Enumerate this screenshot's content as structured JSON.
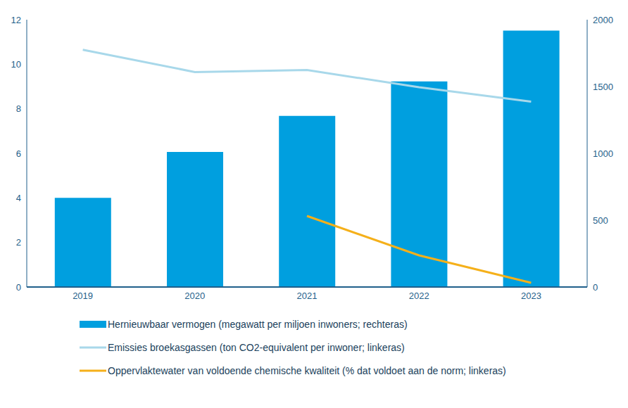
{
  "chart_data": {
    "type": "bar",
    "categories": [
      "2019",
      "2020",
      "2021",
      "2022",
      "2023"
    ],
    "series": [
      {
        "name": "Hernieuwbaar vermogen (megawatt per miljoen inwoners; rechteras)",
        "type": "bar",
        "axis": "y2",
        "color": "#009fdf",
        "values": [
          667,
          1011,
          1280,
          1538,
          1919
        ]
      },
      {
        "name": "Emissies broekasgassen (ton CO2-equivalent per inwoner; linkeras)",
        "type": "line",
        "color": "#a8d8ea",
        "values": [
          10.65,
          9.65,
          9.74,
          8.97,
          8.32
        ]
      },
      {
        "name": "Oppervlaktewater van voldoende chemische kwaliteit (% dat voldoet aan de norm; linkeras)",
        "type": "line",
        "color": "#f5b01a",
        "values": [
          null,
          null,
          3.19,
          1.42,
          0.19
        ]
      }
    ],
    "ylim": [
      0,
      12
    ],
    "yticks": [
      0,
      2,
      4,
      6,
      8,
      10,
      12
    ],
    "y2lim": [
      0,
      2000
    ],
    "y2ticks": [
      0,
      500,
      1000,
      1500,
      2000
    ],
    "grid": false,
    "legend": "bottom"
  }
}
